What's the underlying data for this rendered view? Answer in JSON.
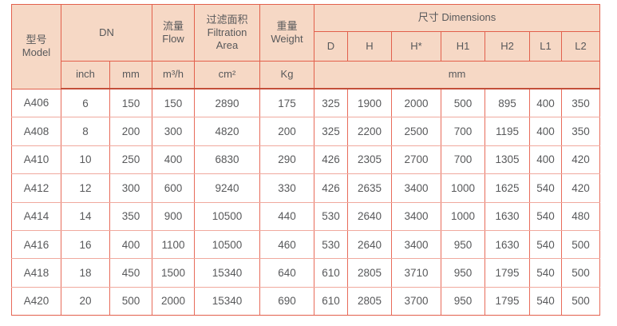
{
  "colors": {
    "header_bg": "#f6d8c5",
    "border_red": "#e2604c",
    "header_rule_dark": "#c34f3a",
    "row_separator_pink": "#f0a99e",
    "text": "#58595b",
    "page_bg": "#ffffff"
  },
  "table": {
    "header": {
      "model": "型号\nModel",
      "dn": "DN",
      "flow": "流量\nFlow",
      "filtration_area": "过滤面积\nFiltration\nArea",
      "weight": "重量\nWeight",
      "dimensions": "尺寸 Dimensions",
      "dimension_columns": [
        "D",
        "H",
        "H*",
        "H1",
        "H2",
        "L1",
        "L2"
      ],
      "unit_inch": "inch",
      "unit_mm": "mm",
      "unit_flow": "m³/h",
      "unit_area": "cm²",
      "unit_weight": "Kg",
      "unit_dimensions": "mm"
    },
    "column_keys": [
      "model",
      "dn_inch",
      "dn_mm",
      "flow_m3h",
      "filtration_cm2",
      "weight_kg",
      "d",
      "h",
      "h_star",
      "h1",
      "h2",
      "l1",
      "l2"
    ],
    "rows": [
      [
        "A406",
        "6",
        "150",
        "150",
        "2890",
        "175",
        "325",
        "1900",
        "2000",
        "500",
        "895",
        "400",
        "350"
      ],
      [
        "A408",
        "8",
        "200",
        "300",
        "4820",
        "200",
        "325",
        "2200",
        "2500",
        "700",
        "1195",
        "400",
        "350"
      ],
      [
        "A410",
        "10",
        "250",
        "400",
        "6830",
        "290",
        "426",
        "2305",
        "2700",
        "700",
        "1305",
        "400",
        "420"
      ],
      [
        "A412",
        "12",
        "300",
        "600",
        "9240",
        "330",
        "426",
        "2635",
        "3400",
        "1000",
        "1625",
        "540",
        "420"
      ],
      [
        "A414",
        "14",
        "350",
        "900",
        "10500",
        "440",
        "530",
        "2640",
        "3400",
        "1000",
        "1630",
        "540",
        "480"
      ],
      [
        "A416",
        "16",
        "400",
        "1100",
        "10500",
        "460",
        "530",
        "2640",
        "3400",
        "950",
        "1630",
        "540",
        "500"
      ],
      [
        "A418",
        "18",
        "450",
        "1500",
        "15340",
        "640",
        "610",
        "2805",
        "3710",
        "950",
        "1795",
        "540",
        "500"
      ],
      [
        "A420",
        "20",
        "500",
        "2000",
        "15340",
        "690",
        "610",
        "2805",
        "3700",
        "950",
        "1795",
        "540",
        "500"
      ]
    ]
  }
}
